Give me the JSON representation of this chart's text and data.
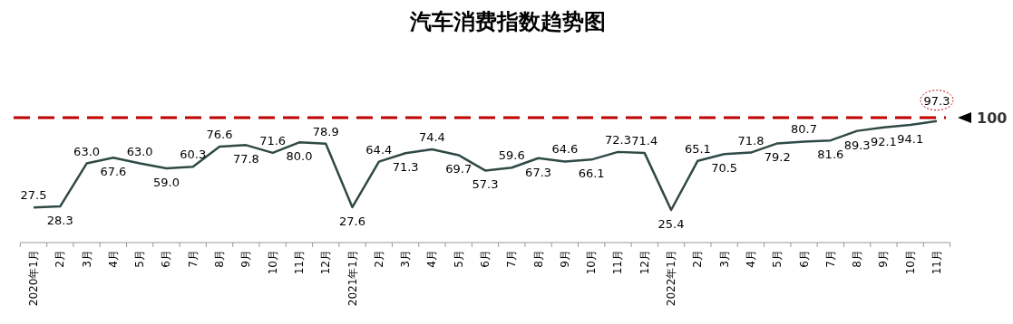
{
  "chart_data": {
    "type": "line",
    "title": "汽车消费指数趋势图",
    "categories": [
      "2020年1月",
      "2月",
      "3月",
      "4月",
      "5月",
      "6月",
      "7月",
      "8月",
      "9月",
      "10月",
      "11月",
      "12月",
      "2021年1月",
      "2月",
      "3月",
      "4月",
      "5月",
      "6月",
      "7月",
      "8月",
      "9月",
      "10月",
      "11月",
      "12月",
      "2022年1月",
      "2月",
      "3月",
      "4月",
      "5月",
      "6月",
      "7月",
      "8月",
      "9月",
      "10月",
      "11月"
    ],
    "series": [
      {
        "color": "#2f4a46",
        "values": [
          27.5,
          28.3,
          63.0,
          67.6,
          63.0,
          59.0,
          60.3,
          76.6,
          77.8,
          71.6,
          80.0,
          78.9,
          27.6,
          64.4,
          71.3,
          74.4,
          69.7,
          57.3,
          59.6,
          67.3,
          64.6,
          66.1,
          72.3,
          71.4,
          25.4,
          65.1,
          70.5,
          71.8,
          79.2,
          80.7,
          81.6,
          89.3,
          92.1,
          94.1,
          97.3
        ],
        "value_labels": [
          "27.5",
          "28.3",
          "63.0",
          "67.6",
          "63.0",
          "59.0",
          "60.3",
          "76.6",
          "77.8",
          "71.6",
          "80.0",
          "78.9",
          "27.6",
          "64.4",
          "71.3",
          "74.4",
          "69.7",
          "57.3",
          "59.6",
          "67.3",
          "64.6",
          "66.1",
          "72.3",
          "71.4",
          "25.4",
          "65.1",
          "70.5",
          "71.8",
          "79.2",
          "80.7",
          "81.6",
          "89.3",
          "92.1",
          "94.1",
          "97.3"
        ]
      }
    ],
    "marker": "none",
    "line_style": "solid",
    "ref_lines": [
      {
        "axis": "y",
        "value": 100,
        "label": "100",
        "color": "#c00000",
        "line_style": "dashed"
      }
    ]
  }
}
